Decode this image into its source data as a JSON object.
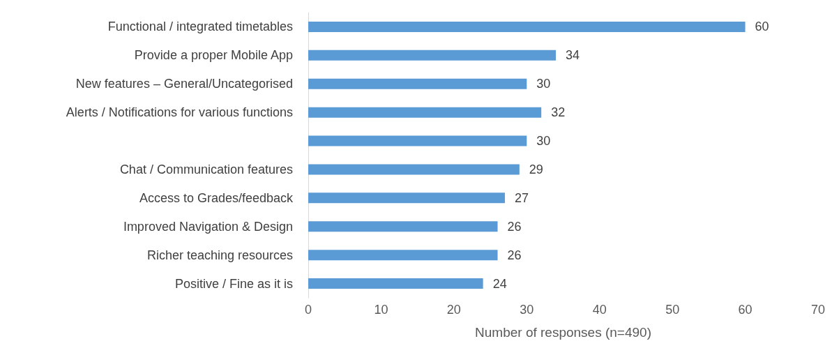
{
  "chart_data": {
    "type": "bar",
    "orientation": "horizontal",
    "xlabel": "Number of responses (n=490)",
    "categories": [
      "Functional / integrated timetables",
      "Provide a proper Mobile App",
      "New features – General/Uncategorised",
      "Alerts / Notifications for various functions",
      null,
      "Chat / Communication features",
      "Access to Grades/feedback",
      "Improved Navigation & Design",
      "Richer teaching resources",
      "Positive / Fine as it is"
    ],
    "values": [
      60,
      34,
      30,
      32,
      30,
      29,
      27,
      26,
      26,
      24
    ],
    "color": "#5b9bd5",
    "xlim": [
      0,
      70
    ],
    "xticks": [
      0,
      10,
      20,
      30,
      40,
      50,
      60,
      70
    ],
    "data_labels": true,
    "grid": false
  }
}
